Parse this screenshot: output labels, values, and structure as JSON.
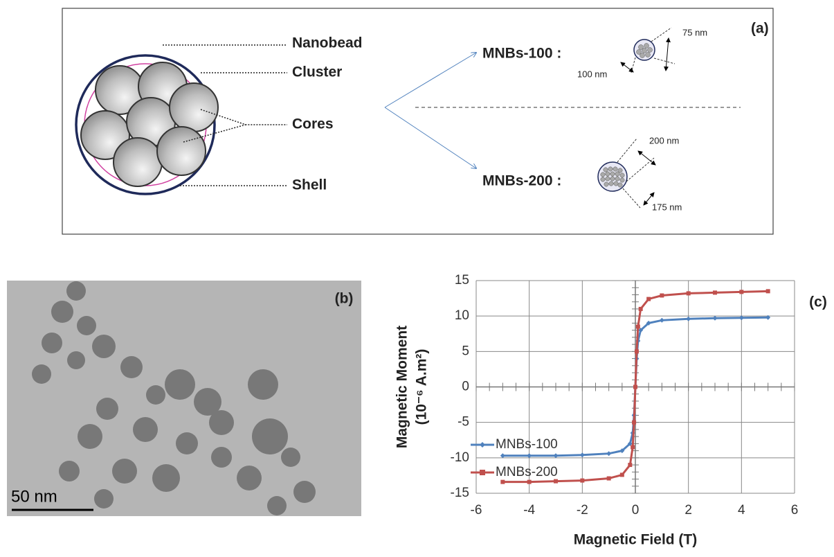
{
  "panel_a": {
    "label": "(a)",
    "parts": [
      "Nanobead",
      "Cluster",
      "Cores",
      "Shell"
    ],
    "beads": [
      {
        "name": "MNBs-100 :",
        "dims": [
          "75 nm",
          "100 nm"
        ]
      },
      {
        "name": "MNBs-200 :",
        "dims": [
          "200 nm",
          "175 nm"
        ]
      }
    ]
  },
  "panel_b": {
    "label": "(b)",
    "scale_bar": "50 nm"
  },
  "chart_data": {
    "type": "line",
    "panel_label": "(c)",
    "xlabel": "Magnetic Field (T)",
    "ylabel": "Magnetic Moment",
    "ylabel_unit": "(10⁻⁶ A.m²)",
    "x": [
      -5,
      -4,
      -3,
      -2,
      -1,
      -0.5,
      -0.2,
      -0.1,
      -0.05,
      0,
      0.05,
      0.1,
      0.2,
      0.5,
      1,
      2,
      3,
      4,
      5
    ],
    "series": [
      {
        "name": "MNBs-100",
        "color": "#4f81bd",
        "marker": "diamond",
        "values": [
          -9.7,
          -9.7,
          -9.7,
          -9.6,
          -9.4,
          -9.0,
          -8.0,
          -6.5,
          -4,
          0,
          4,
          6.5,
          8.0,
          9.0,
          9.4,
          9.6,
          9.7,
          9.75,
          9.8
        ]
      },
      {
        "name": "MNBs-200",
        "color": "#c0504d",
        "marker": "square",
        "values": [
          -13.4,
          -13.4,
          -13.3,
          -13.2,
          -12.9,
          -12.4,
          -11,
          -8.5,
          -5,
          0,
          5,
          8.5,
          11,
          12.4,
          12.9,
          13.2,
          13.3,
          13.4,
          13.5
        ]
      }
    ],
    "xlim": [
      -6,
      6
    ],
    "xticks": [
      -6,
      -4,
      -2,
      0,
      2,
      4,
      6
    ],
    "ylim": [
      -15,
      15
    ],
    "yticks": [
      -15,
      -10,
      -5,
      0,
      5,
      10,
      15
    ],
    "grid": true,
    "legend": "lower left"
  }
}
